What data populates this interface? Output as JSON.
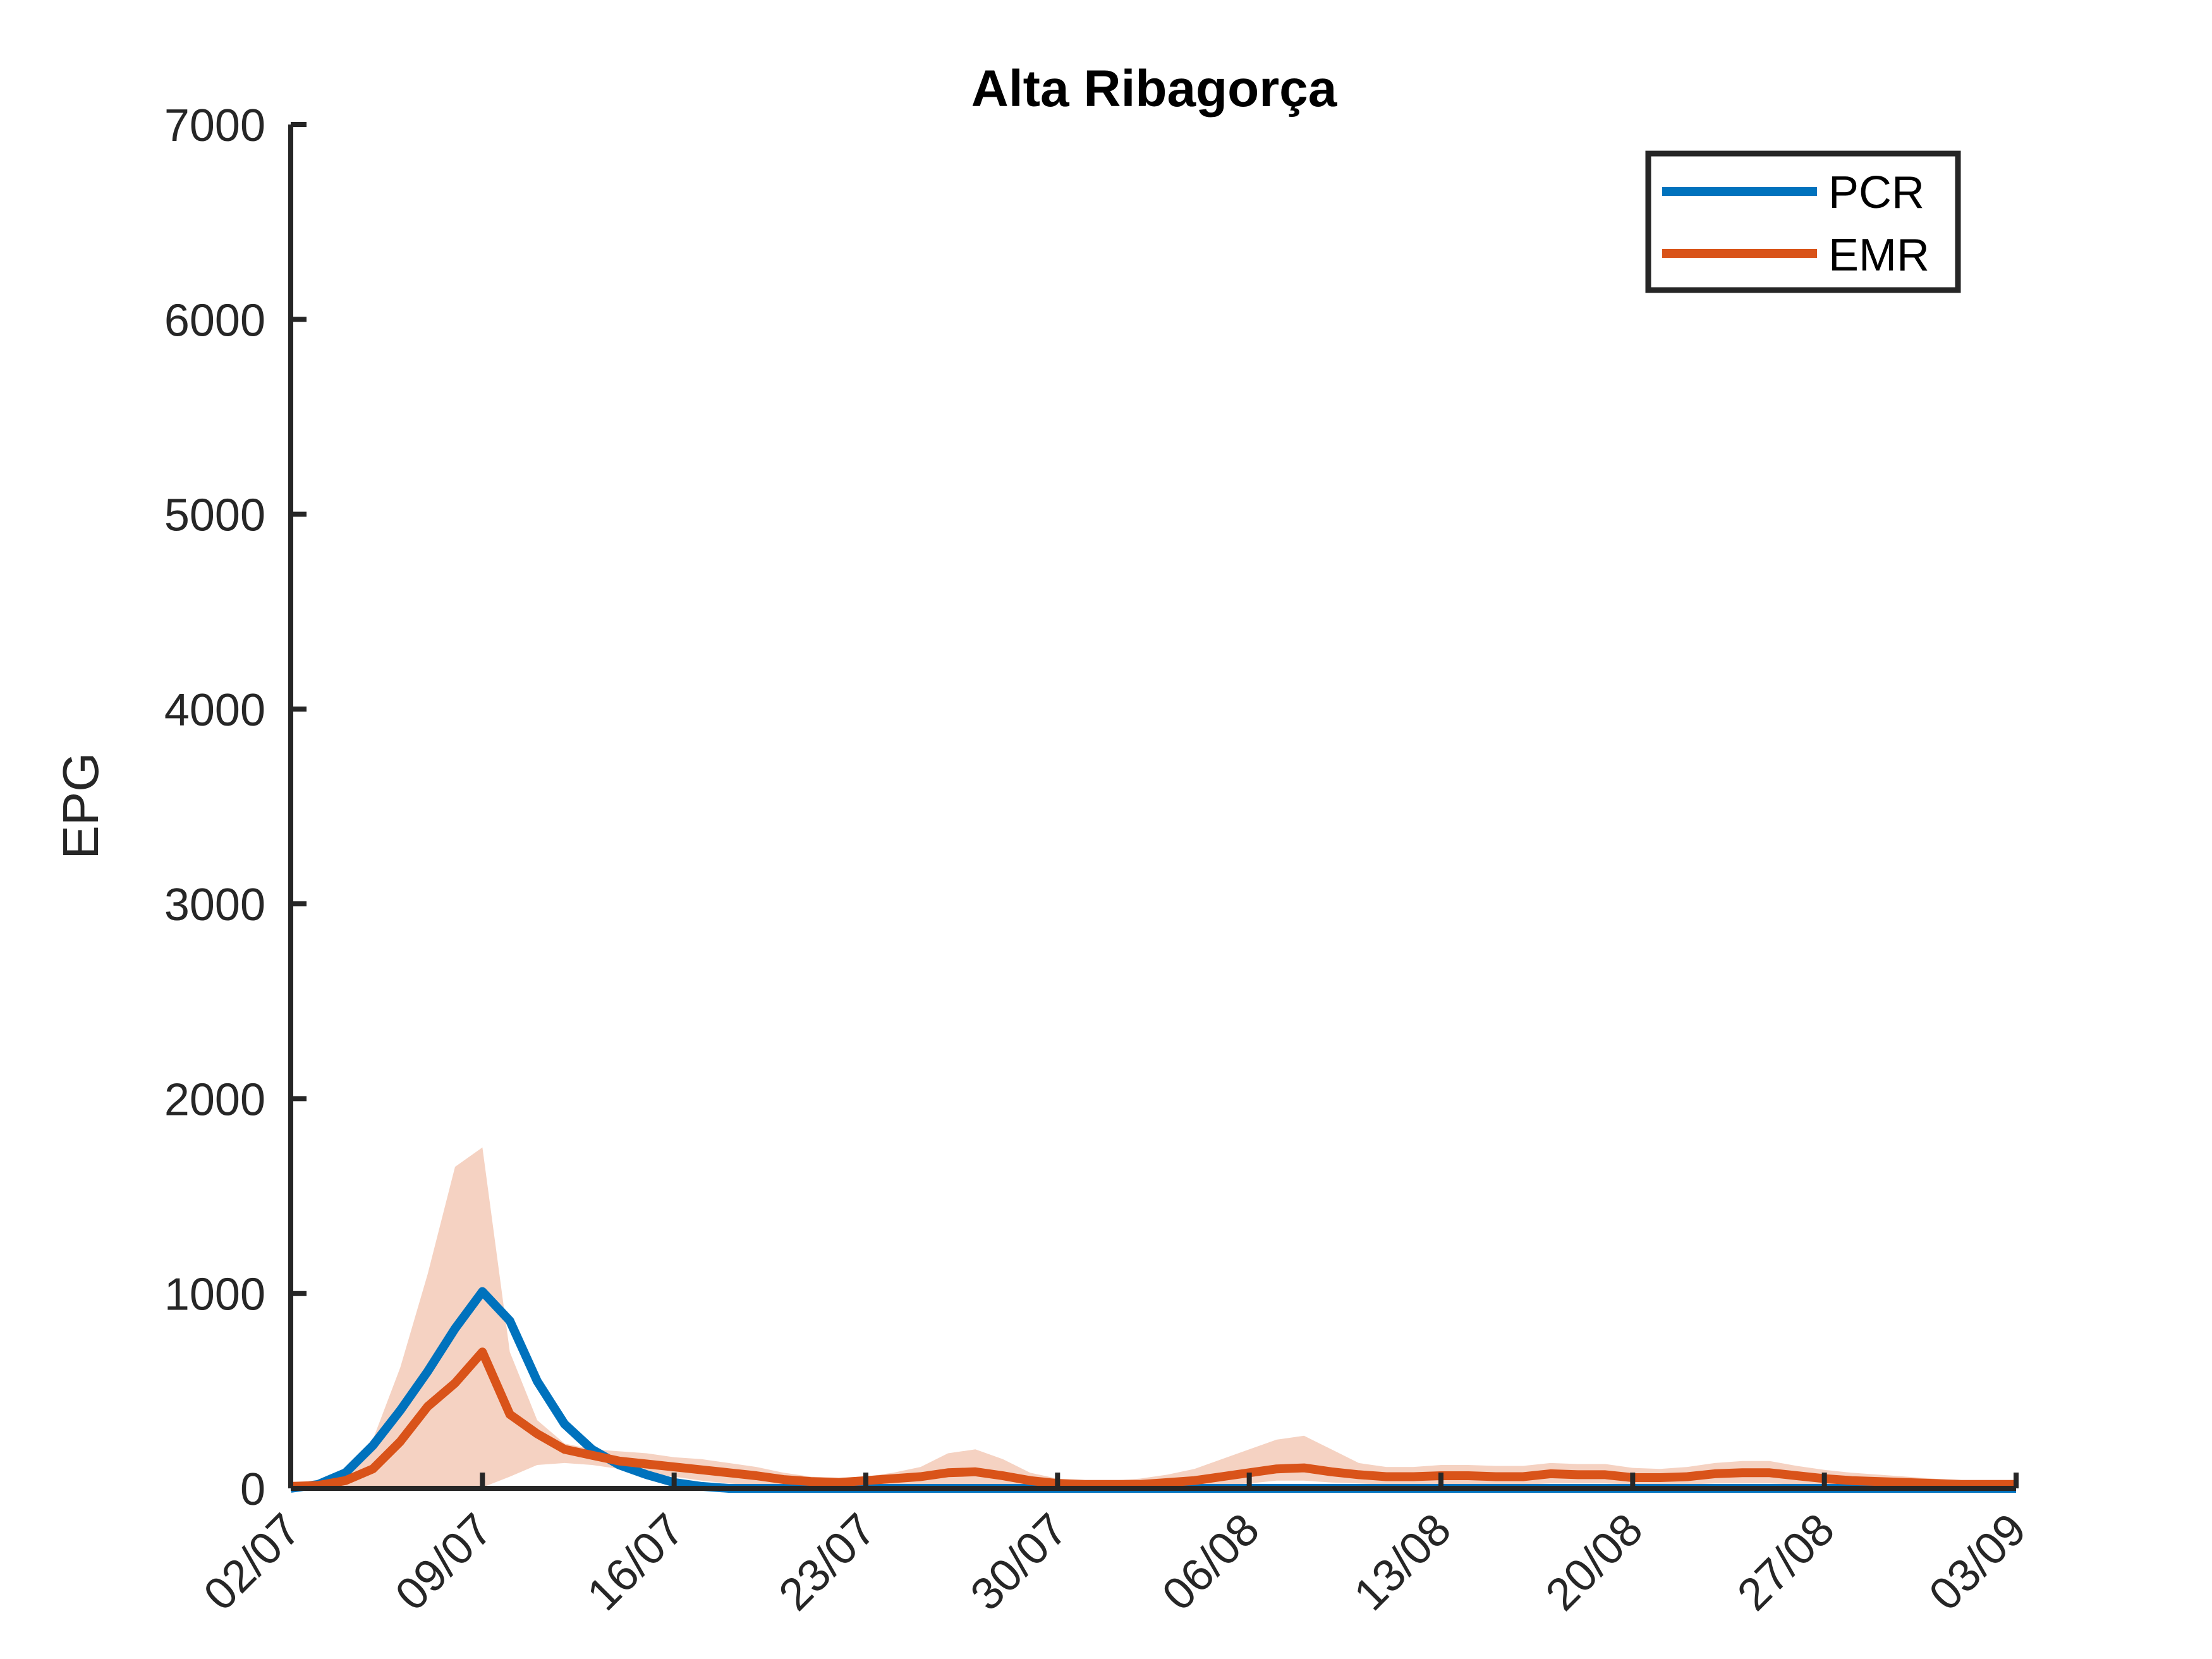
{
  "chart_data": {
    "type": "line",
    "title": "Alta Ribagorça",
    "xlabel": "",
    "ylabel": "EPG",
    "ylim": [
      0,
      7000
    ],
    "yticks": [
      "0",
      "1000",
      "2000",
      "3000",
      "4000",
      "5000",
      "6000",
      "7000"
    ],
    "xticks": [
      "02/07",
      "09/07",
      "16/07",
      "23/07",
      "30/07",
      "06/08",
      "13/08",
      "20/08",
      "27/08",
      "03/09"
    ],
    "grid": false,
    "legend_position": "top-right",
    "x": [
      "02/07",
      "03/07",
      "04/07",
      "05/07",
      "06/07",
      "07/07",
      "08/07",
      "09/07",
      "10/07",
      "11/07",
      "12/07",
      "13/07",
      "14/07",
      "15/07",
      "16/07",
      "17/07",
      "18/07",
      "19/07",
      "20/07",
      "21/07",
      "22/07",
      "23/07",
      "24/07",
      "25/07",
      "26/07",
      "27/07",
      "28/07",
      "29/07",
      "30/07",
      "31/07",
      "01/08",
      "02/08",
      "03/08",
      "04/08",
      "05/08",
      "06/08",
      "07/08",
      "08/08",
      "09/08",
      "10/08",
      "11/08",
      "12/08",
      "13/08",
      "14/08",
      "15/08",
      "16/08",
      "17/08",
      "18/08",
      "19/08",
      "20/08",
      "21/08",
      "22/08",
      "23/08",
      "24/08",
      "25/08",
      "26/08",
      "27/08",
      "28/08",
      "29/08",
      "30/08",
      "31/08",
      "01/09",
      "02/09",
      "03/09"
    ],
    "series": [
      {
        "name": "PCR",
        "color": "#0072BD",
        "values": [
          0,
          20,
          80,
          220,
          400,
          600,
          820,
          1010,
          860,
          550,
          330,
          200,
          120,
          70,
          30,
          10,
          0,
          0,
          0,
          0,
          0,
          0,
          0,
          0,
          0,
          0,
          0,
          0,
          0,
          0,
          0,
          0,
          0,
          0,
          0,
          0,
          0,
          0,
          0,
          0,
          0,
          0,
          0,
          0,
          0,
          0,
          0,
          0,
          0,
          0,
          0,
          0,
          0,
          0,
          0,
          0,
          0,
          0,
          0,
          0,
          0,
          0,
          0,
          0
        ]
      },
      {
        "name": "EMR",
        "color": "#D95319",
        "values": [
          10,
          15,
          40,
          100,
          240,
          420,
          540,
          700,
          380,
          280,
          200,
          170,
          140,
          125,
          110,
          95,
          80,
          65,
          45,
          35,
          30,
          40,
          50,
          60,
          80,
          85,
          65,
          40,
          25,
          20,
          20,
          20,
          30,
          40,
          60,
          80,
          100,
          105,
          85,
          70,
          60,
          60,
          65,
          65,
          60,
          60,
          75,
          70,
          70,
          55,
          55,
          60,
          75,
          80,
          80,
          65,
          50,
          40,
          35,
          30,
          25,
          20,
          20,
          20
        ]
      }
    ],
    "band": {
      "of": "EMR",
      "color": "#F5D2C2",
      "upper": [
        15,
        25,
        70,
        250,
        620,
        1100,
        1650,
        1750,
        700,
        350,
        230,
        200,
        190,
        180,
        160,
        150,
        130,
        110,
        80,
        60,
        55,
        60,
        80,
        110,
        180,
        200,
        150,
        80,
        50,
        40,
        40,
        50,
        70,
        100,
        150,
        200,
        250,
        270,
        200,
        130,
        110,
        110,
        120,
        120,
        115,
        115,
        130,
        125,
        125,
        105,
        100,
        110,
        130,
        140,
        140,
        115,
        95,
        80,
        70,
        60,
        50,
        40,
        35,
        30
      ],
      "lower": [
        5,
        5,
        5,
        5,
        5,
        5,
        5,
        5,
        60,
        120,
        130,
        120,
        100,
        80,
        60,
        40,
        25,
        15,
        10,
        8,
        5,
        8,
        10,
        15,
        20,
        20,
        15,
        10,
        5,
        5,
        5,
        5,
        5,
        8,
        15,
        25,
        40,
        40,
        30,
        25,
        20,
        20,
        20,
        20,
        20,
        20,
        25,
        25,
        25,
        20,
        20,
        20,
        25,
        25,
        25,
        20,
        15,
        12,
        10,
        10,
        8,
        5,
        5,
        5
      ]
    }
  }
}
